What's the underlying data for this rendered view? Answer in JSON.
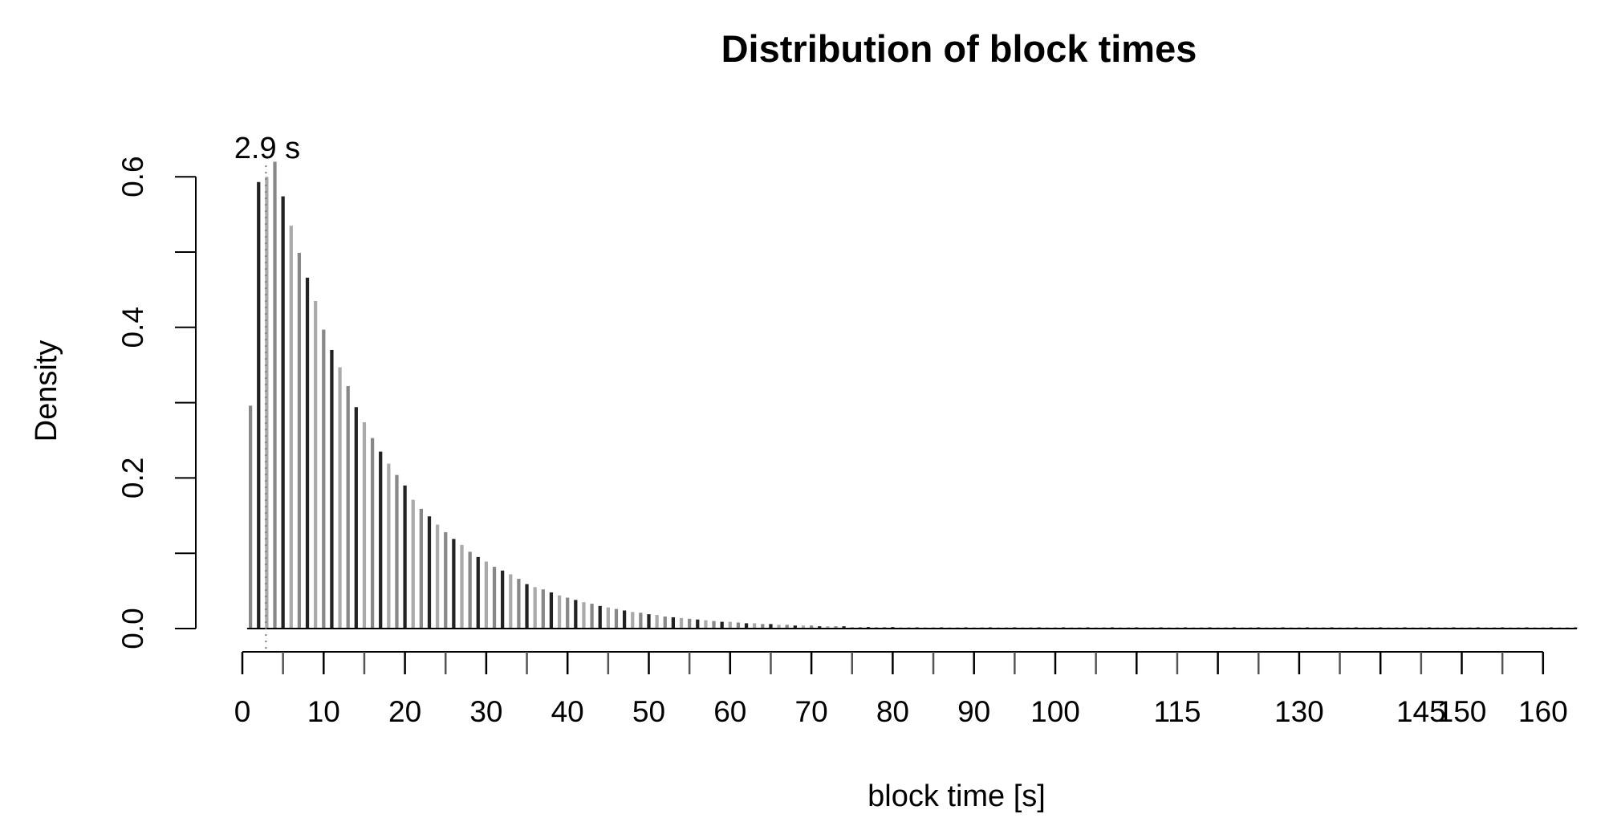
{
  "chart_data": {
    "type": "bar",
    "title": "Distribution of block times",
    "xlabel": "block time [s]",
    "ylabel": "Density",
    "xlim": [
      0,
      160
    ],
    "ylim": [
      0,
      0.6
    ],
    "x_ticks": [
      0,
      5,
      10,
      15,
      20,
      25,
      30,
      35,
      40,
      45,
      50,
      55,
      60,
      65,
      70,
      75,
      80,
      85,
      90,
      95,
      100,
      105,
      110,
      115,
      120,
      125,
      130,
      135,
      140,
      145,
      150,
      155,
      160
    ],
    "x_tick_labels": [
      "0",
      "10",
      "20",
      "30",
      "40",
      "50",
      "60",
      "70",
      "80",
      "90",
      "100",
      "115",
      "130",
      "145",
      "150",
      "160"
    ],
    "x_tick_label_values": [
      0,
      10,
      20,
      30,
      40,
      50,
      60,
      70,
      80,
      90,
      100,
      115,
      130,
      145,
      150,
      160
    ],
    "y_ticks": [
      0.0,
      0.1,
      0.2,
      0.3,
      0.4,
      0.5,
      0.6
    ],
    "y_tick_labels": [
      "0.0",
      "0.2",
      "0.4",
      "0.6"
    ],
    "y_tick_label_values": [
      0.0,
      0.2,
      0.4,
      0.6
    ],
    "bar_width_s": 1,
    "x": [
      1,
      2,
      3,
      4,
      5,
      6,
      7,
      8,
      9,
      10,
      11,
      12,
      13,
      14,
      15,
      16,
      17,
      18,
      19,
      20,
      21,
      22,
      23,
      24,
      25,
      26,
      27,
      28,
      29,
      30,
      31,
      32,
      33,
      34,
      35,
      36,
      37,
      38,
      39,
      40,
      41,
      42,
      43,
      44,
      45,
      46,
      47,
      48,
      49,
      50,
      51,
      52,
      53,
      54,
      55,
      56,
      57,
      58,
      59,
      60,
      61,
      62,
      63,
      64,
      65,
      66,
      67,
      68,
      69,
      70,
      71,
      72,
      73,
      74,
      75,
      76,
      77,
      78,
      79,
      80,
      81,
      82,
      83,
      84,
      85,
      86,
      87,
      88,
      89,
      90,
      91,
      92,
      93,
      94,
      95,
      96,
      97,
      98,
      99,
      100,
      101,
      102,
      103,
      104,
      105,
      106,
      107,
      108,
      109,
      110,
      111,
      112,
      113,
      114,
      115,
      116,
      117,
      118,
      119,
      120,
      121,
      122,
      123,
      124,
      125,
      126,
      127,
      128,
      129,
      130,
      131,
      132,
      133,
      134,
      135,
      136,
      137,
      138,
      139,
      140,
      141,
      142,
      143,
      144,
      145,
      146,
      147,
      148,
      149,
      150,
      151,
      152,
      153,
      154,
      155,
      156,
      157,
      158,
      159,
      160,
      161,
      162,
      163,
      164
    ],
    "values": [
      0.296,
      0.593,
      0.6,
      0.62,
      0.574,
      0.535,
      0.499,
      0.466,
      0.435,
      0.397,
      0.37,
      0.347,
      0.322,
      0.294,
      0.274,
      0.253,
      0.235,
      0.219,
      0.204,
      0.19,
      0.171,
      0.159,
      0.149,
      0.138,
      0.128,
      0.119,
      0.111,
      0.102,
      0.095,
      0.089,
      0.082,
      0.077,
      0.072,
      0.066,
      0.059,
      0.055,
      0.052,
      0.048,
      0.044,
      0.041,
      0.038,
      0.035,
      0.033,
      0.03,
      0.028,
      0.026,
      0.024,
      0.022,
      0.021,
      0.019,
      0.018,
      0.016,
      0.015,
      0.014,
      0.013,
      0.012,
      0.011,
      0.01,
      0.009,
      0.009,
      0.008,
      0.007,
      0.007,
      0.006,
      0.006,
      0.005,
      0.005,
      0.004,
      0.004,
      0.004,
      0.003,
      0.003,
      0.003,
      0.003,
      0.002,
      0.002,
      0.002,
      0.002,
      0.002,
      0.002,
      0.001,
      0.001,
      0.001,
      0.001,
      0.001,
      0.001,
      0.001,
      0.001,
      0.001,
      0.001,
      0.001,
      0.001,
      0.0005,
      0.0005,
      0.0005,
      0.0005,
      0.0005,
      0.0005,
      0.0005,
      0.0005,
      0.0005,
      0.0005,
      0.0005,
      0.0005,
      0.0005,
      0.0005,
      0.0005,
      0.0005,
      0.0005,
      0.0005,
      0.0005,
      0.0005,
      0.0005,
      0.0005,
      0.0005,
      0.0005,
      0.0005,
      0.0005,
      0.0005,
      0.0005,
      0.0005,
      0.0005,
      0.0005,
      0.0005,
      0.0005,
      0.0005,
      0.0005,
      0.0005,
      0.0005,
      0.0005,
      0.0005,
      0.0005,
      0.0005,
      0.0005,
      0.0005,
      0.0005,
      0.0005,
      0.0005,
      0.0005,
      0.0005,
      0.0005,
      0.0005,
      0.0005,
      0.0005,
      0.0005,
      0.0005,
      0.0005,
      0.0005,
      0.0005,
      0.0005,
      0.0005,
      0.0005,
      0.0005,
      0.0005,
      0.0005,
      0.0005,
      0.0005,
      0.0005,
      0.0005,
      0.0005,
      0.0005,
      0.0005,
      0.0005,
      0.0005
    ],
    "bar_colors": [
      "#888888",
      "#222222",
      "#aaaaaa"
    ],
    "mode": 2.9,
    "mode_label": "2.9 s",
    "mode_line_style": "dotted",
    "grid": false,
    "legend": "none"
  }
}
